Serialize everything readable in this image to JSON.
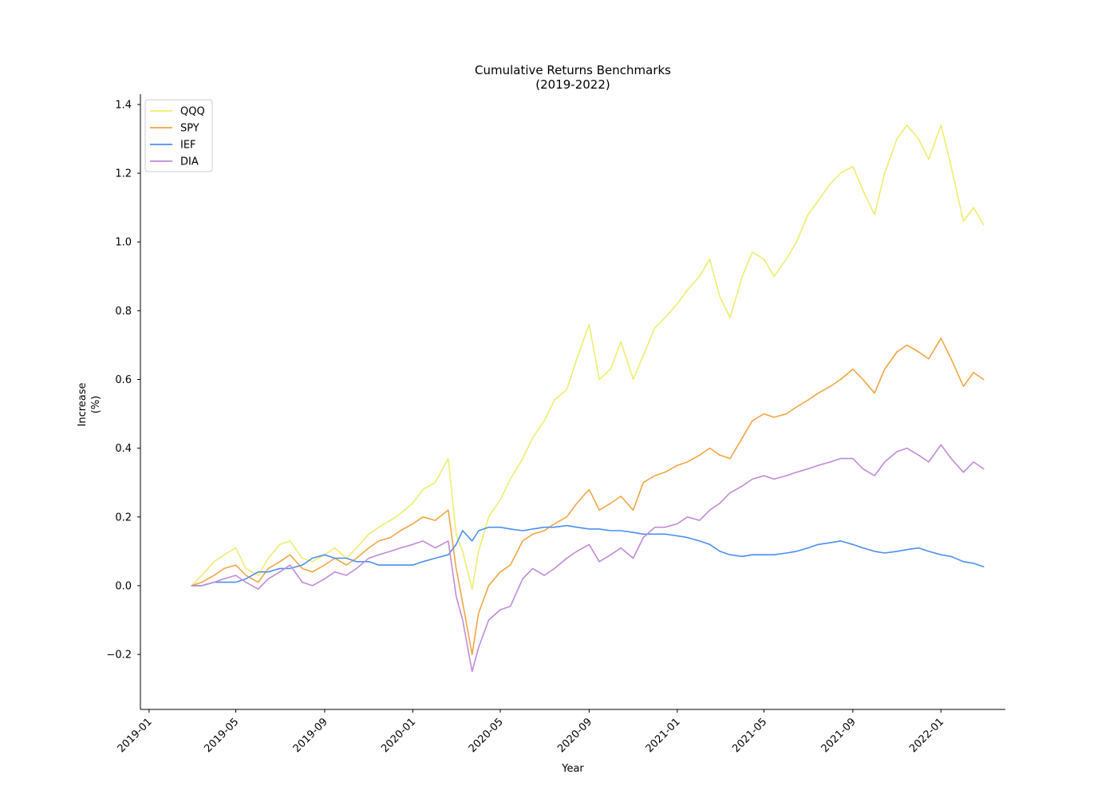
{
  "chart_data": {
    "type": "line",
    "title": [
      "Cumulative Returns Benchmarks",
      "(2019-2022)"
    ],
    "xlabel": "Year",
    "ylabel": [
      "Increase",
      "(%)"
    ],
    "xlim": [
      "2018-12-20",
      "2022-03-31"
    ],
    "ylim": [
      -0.36,
      1.43
    ],
    "x_ticks": [
      "2019-01",
      "2019-05",
      "2019-09",
      "2020-01",
      "2020-05",
      "2020-09",
      "2021-01",
      "2021-05",
      "2021-09",
      "2022-01"
    ],
    "y_ticks": [
      -0.2,
      0.0,
      0.2,
      0.4,
      0.6,
      0.8,
      1.0,
      1.2,
      1.4
    ],
    "y_tick_labels": [
      "−0.2",
      "0.0",
      "0.2",
      "0.4",
      "0.6",
      "0.8",
      "1.0",
      "1.2",
      "1.4"
    ],
    "grid": false,
    "legend_position": "top-left",
    "x": [
      "2019-03-01",
      "2019-03-15",
      "2019-04-01",
      "2019-04-15",
      "2019-05-01",
      "2019-05-15",
      "2019-06-01",
      "2019-06-15",
      "2019-07-01",
      "2019-07-15",
      "2019-08-01",
      "2019-08-15",
      "2019-09-01",
      "2019-09-15",
      "2019-10-01",
      "2019-10-15",
      "2019-11-01",
      "2019-11-15",
      "2019-12-01",
      "2019-12-15",
      "2020-01-01",
      "2020-01-15",
      "2020-02-01",
      "2020-02-19",
      "2020-03-01",
      "2020-03-10",
      "2020-03-23",
      "2020-04-01",
      "2020-04-15",
      "2020-05-01",
      "2020-05-15",
      "2020-06-01",
      "2020-06-15",
      "2020-07-01",
      "2020-07-15",
      "2020-08-01",
      "2020-08-15",
      "2020-09-01",
      "2020-09-15",
      "2020-10-01",
      "2020-10-15",
      "2020-11-01",
      "2020-11-15",
      "2020-12-01",
      "2020-12-15",
      "2021-01-01",
      "2021-01-15",
      "2021-02-01",
      "2021-02-15",
      "2021-03-01",
      "2021-03-15",
      "2021-04-01",
      "2021-04-15",
      "2021-05-01",
      "2021-05-15",
      "2021-06-01",
      "2021-06-15",
      "2021-07-01",
      "2021-07-15",
      "2021-08-01",
      "2021-08-15",
      "2021-09-01",
      "2021-09-15",
      "2021-10-01",
      "2021-10-15",
      "2021-11-01",
      "2021-11-15",
      "2021-12-01",
      "2021-12-15",
      "2022-01-01",
      "2022-01-15",
      "2022-02-01",
      "2022-02-15",
      "2022-03-01"
    ],
    "series": [
      {
        "name": "QQQ",
        "color": "#f0ec6e",
        "values": [
          0.0,
          0.03,
          0.07,
          0.09,
          0.11,
          0.05,
          0.03,
          0.08,
          0.12,
          0.13,
          0.08,
          0.07,
          0.09,
          0.11,
          0.08,
          0.11,
          0.15,
          0.17,
          0.19,
          0.21,
          0.24,
          0.28,
          0.3,
          0.37,
          0.15,
          0.1,
          -0.01,
          0.1,
          0.2,
          0.25,
          0.31,
          0.37,
          0.43,
          0.48,
          0.54,
          0.57,
          0.66,
          0.76,
          0.6,
          0.63,
          0.71,
          0.6,
          0.67,
          0.75,
          0.78,
          0.82,
          0.86,
          0.9,
          0.95,
          0.84,
          0.78,
          0.9,
          0.97,
          0.95,
          0.9,
          0.95,
          1.0,
          1.08,
          1.12,
          1.17,
          1.2,
          1.22,
          1.15,
          1.08,
          1.2,
          1.3,
          1.34,
          1.3,
          1.24,
          1.34,
          1.22,
          1.06,
          1.1,
          1.05
        ]
      },
      {
        "name": "SPY",
        "color": "#f2a542",
        "values": [
          0.0,
          0.01,
          0.03,
          0.05,
          0.06,
          0.03,
          0.01,
          0.05,
          0.07,
          0.09,
          0.05,
          0.04,
          0.06,
          0.08,
          0.06,
          0.08,
          0.11,
          0.13,
          0.14,
          0.16,
          0.18,
          0.2,
          0.19,
          0.22,
          0.05,
          -0.05,
          -0.2,
          -0.08,
          0.0,
          0.04,
          0.06,
          0.13,
          0.15,
          0.16,
          0.18,
          0.2,
          0.24,
          0.28,
          0.22,
          0.24,
          0.26,
          0.22,
          0.3,
          0.32,
          0.33,
          0.35,
          0.36,
          0.38,
          0.4,
          0.38,
          0.37,
          0.43,
          0.48,
          0.5,
          0.49,
          0.5,
          0.52,
          0.54,
          0.56,
          0.58,
          0.6,
          0.63,
          0.6,
          0.56,
          0.63,
          0.68,
          0.7,
          0.68,
          0.66,
          0.72,
          0.66,
          0.58,
          0.62,
          0.6
        ]
      },
      {
        "name": "IEF",
        "color": "#4a8ff0",
        "values": [
          0.0,
          0.0,
          0.01,
          0.01,
          0.01,
          0.02,
          0.04,
          0.04,
          0.05,
          0.05,
          0.06,
          0.08,
          0.09,
          0.08,
          0.08,
          0.07,
          0.07,
          0.06,
          0.06,
          0.06,
          0.06,
          0.07,
          0.08,
          0.09,
          0.12,
          0.16,
          0.13,
          0.16,
          0.17,
          0.17,
          0.165,
          0.16,
          0.165,
          0.17,
          0.17,
          0.175,
          0.17,
          0.165,
          0.165,
          0.16,
          0.16,
          0.155,
          0.15,
          0.15,
          0.15,
          0.145,
          0.14,
          0.13,
          0.12,
          0.1,
          0.09,
          0.085,
          0.09,
          0.09,
          0.09,
          0.095,
          0.1,
          0.11,
          0.12,
          0.125,
          0.13,
          0.12,
          0.11,
          0.1,
          0.095,
          0.1,
          0.105,
          0.11,
          0.1,
          0.09,
          0.085,
          0.07,
          0.065,
          0.055
        ]
      },
      {
        "name": "DIA",
        "color": "#c08ad8",
        "values": [
          0.0,
          0.0,
          0.01,
          0.02,
          0.03,
          0.01,
          -0.01,
          0.02,
          0.04,
          0.06,
          0.01,
          0.0,
          0.02,
          0.04,
          0.03,
          0.05,
          0.08,
          0.09,
          0.1,
          0.11,
          0.12,
          0.13,
          0.11,
          0.13,
          -0.03,
          -0.1,
          -0.25,
          -0.18,
          -0.1,
          -0.07,
          -0.06,
          0.02,
          0.05,
          0.03,
          0.05,
          0.08,
          0.1,
          0.12,
          0.07,
          0.09,
          0.11,
          0.08,
          0.14,
          0.17,
          0.17,
          0.18,
          0.2,
          0.19,
          0.22,
          0.24,
          0.27,
          0.29,
          0.31,
          0.32,
          0.31,
          0.32,
          0.33,
          0.34,
          0.35,
          0.36,
          0.37,
          0.37,
          0.34,
          0.32,
          0.36,
          0.39,
          0.4,
          0.38,
          0.36,
          0.41,
          0.37,
          0.33,
          0.36,
          0.34
        ]
      }
    ]
  }
}
